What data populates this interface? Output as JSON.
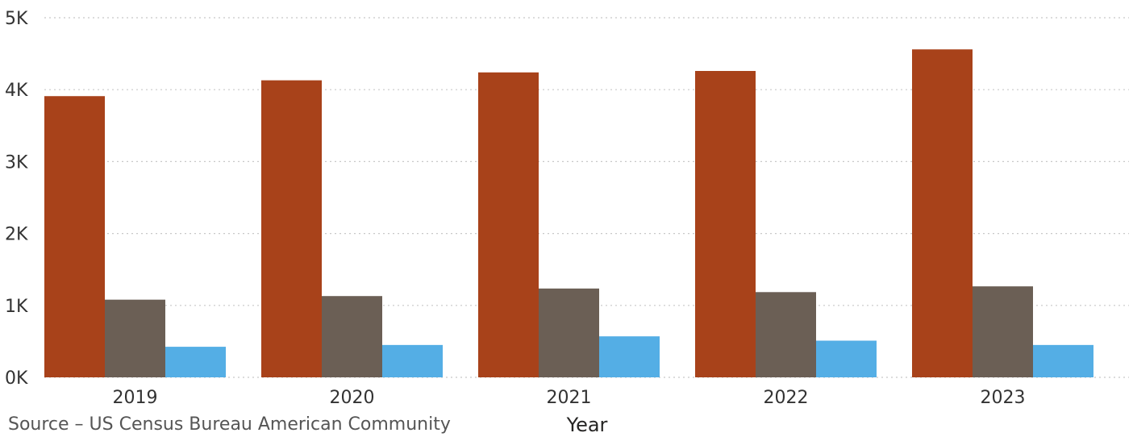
{
  "chart_data": {
    "type": "bar",
    "title": "",
    "xlabel": "Year",
    "ylabel": "",
    "categories": [
      "2019",
      "2020",
      "2021",
      "2022",
      "2023"
    ],
    "ylim": [
      0,
      5000
    ],
    "yticks": [
      {
        "value": 0,
        "label": "0K"
      },
      {
        "value": 1000,
        "label": "1K"
      },
      {
        "value": 2000,
        "label": "2K"
      },
      {
        "value": 3000,
        "label": "3K"
      },
      {
        "value": 4000,
        "label": "4K"
      },
      {
        "value": 5000,
        "label": "5K"
      }
    ],
    "grid": true,
    "series": [
      {
        "color": "#a8421a",
        "values": [
          3910,
          4130,
          4240,
          4260,
          4560
        ]
      },
      {
        "color": "#6b5f55",
        "values": [
          1080,
          1130,
          1235,
          1185,
          1265
        ]
      },
      {
        "color": "#54aee5",
        "values": [
          425,
          450,
          570,
          510,
          450
        ]
      }
    ]
  },
  "source_note": "Source – US Census Bureau American Community"
}
